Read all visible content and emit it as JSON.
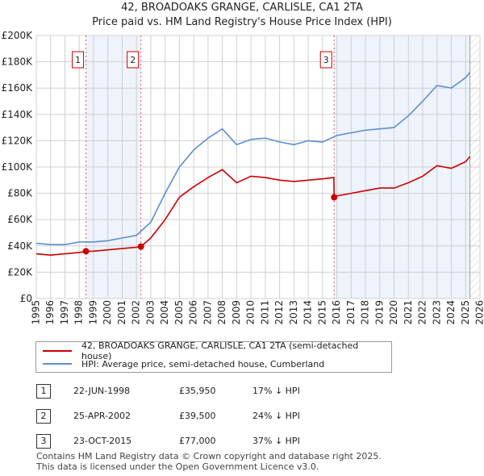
{
  "chart_data": {
    "type": "line",
    "title": "42, BROADOAKS GRANGE, CARLISLE, CA1 2TA",
    "subtitle": "Price paid vs. HM Land Registry's House Price Index (HPI)",
    "xlim": [
      1995,
      2026
    ],
    "ylim": [
      0,
      200000
    ],
    "x_ticks": [
      "1995",
      "1996",
      "1997",
      "1998",
      "1999",
      "2000",
      "2001",
      "2002",
      "2003",
      "2004",
      "2005",
      "2006",
      "2007",
      "2008",
      "2009",
      "2010",
      "2011",
      "2012",
      "2013",
      "2014",
      "2015",
      "2016",
      "2017",
      "2018",
      "2019",
      "2020",
      "2021",
      "2022",
      "2023",
      "2024",
      "2025",
      "2026"
    ],
    "y_ticks": [
      {
        "v": 0,
        "label": "£0"
      },
      {
        "v": 20000,
        "label": "£20K"
      },
      {
        "v": 40000,
        "label": "£40K"
      },
      {
        "v": 60000,
        "label": "£60K"
      },
      {
        "v": 80000,
        "label": "£80K"
      },
      {
        "v": 100000,
        "label": "£100K"
      },
      {
        "v": 120000,
        "label": "£120K"
      },
      {
        "v": 140000,
        "label": "£140K"
      },
      {
        "v": 160000,
        "label": "£160K"
      },
      {
        "v": 180000,
        "label": "£180K"
      },
      {
        "v": 200000,
        "label": "£200K"
      }
    ],
    "grid": true,
    "series": [
      {
        "name": "42, BROADOAKS GRANGE, CARLISLE, CA1 2TA (semi-detached house)",
        "color": "#cc0000",
        "x": [
          1995,
          1996,
          1997,
          1998,
          1998.47,
          1999,
          2000,
          2001,
          2002,
          2002.31,
          2003,
          2004,
          2005,
          2006,
          2007,
          2008,
          2009,
          2010,
          2011,
          2012,
          2013,
          2014,
          2015,
          2015.79,
          2015.81,
          2016,
          2017,
          2018,
          2019,
          2020,
          2021,
          2022,
          2023,
          2024,
          2025,
          2025.3
        ],
        "y": [
          34000,
          33000,
          34000,
          35000,
          35950,
          36000,
          37000,
          38000,
          39000,
          39500,
          46000,
          60000,
          77000,
          85000,
          92000,
          98000,
          88000,
          93000,
          92000,
          90000,
          89000,
          90000,
          91000,
          92000,
          77000,
          78000,
          80000,
          82000,
          84000,
          84000,
          88000,
          93000,
          101000,
          99000,
          104000,
          108000
        ]
      },
      {
        "name": "HPI: Average price, semi-detached house, Cumberland",
        "color": "#5b8fd0",
        "x": [
          1995,
          1996,
          1997,
          1998,
          1999,
          2000,
          2001,
          2002,
          2003,
          2004,
          2005,
          2006,
          2007,
          2008,
          2009,
          2010,
          2011,
          2012,
          2013,
          2014,
          2015,
          2016,
          2017,
          2018,
          2019,
          2020,
          2021,
          2022,
          2023,
          2024,
          2025,
          2025.3
        ],
        "y": [
          42000,
          41000,
          41000,
          43000,
          43000,
          44000,
          46000,
          48000,
          58000,
          80000,
          100000,
          113000,
          122000,
          129000,
          117000,
          121000,
          122000,
          119000,
          117000,
          120000,
          119000,
          124000,
          126000,
          128000,
          129000,
          130000,
          139000,
          150000,
          162000,
          160000,
          168000,
          172000
        ]
      }
    ],
    "markers": [
      {
        "id": "1",
        "x": 1998.47,
        "y": 35950
      },
      {
        "id": "2",
        "x": 2002.31,
        "y": 39500
      },
      {
        "id": "3",
        "x": 2015.81,
        "y": 77000
      }
    ],
    "shaded": [
      [
        1998.47,
        2002.31
      ],
      [
        2015.81,
        2025.3
      ]
    ],
    "hatch_from": 2025.3,
    "legend_placement": "below"
  },
  "table": [
    {
      "num": "1",
      "date": "22-JUN-1998",
      "price": "£35,950",
      "hpi": "17% ↓ HPI"
    },
    {
      "num": "2",
      "date": "25-APR-2002",
      "price": "£39,500",
      "hpi": "24% ↓ HPI"
    },
    {
      "num": "3",
      "date": "23-OCT-2015",
      "price": "£77,000",
      "hpi": "37% ↓ HPI"
    }
  ],
  "footer": [
    "Contains HM Land Registry data © Crown copyright and database right 2025.",
    "This data is licensed under the Open Government Licence v3.0."
  ]
}
